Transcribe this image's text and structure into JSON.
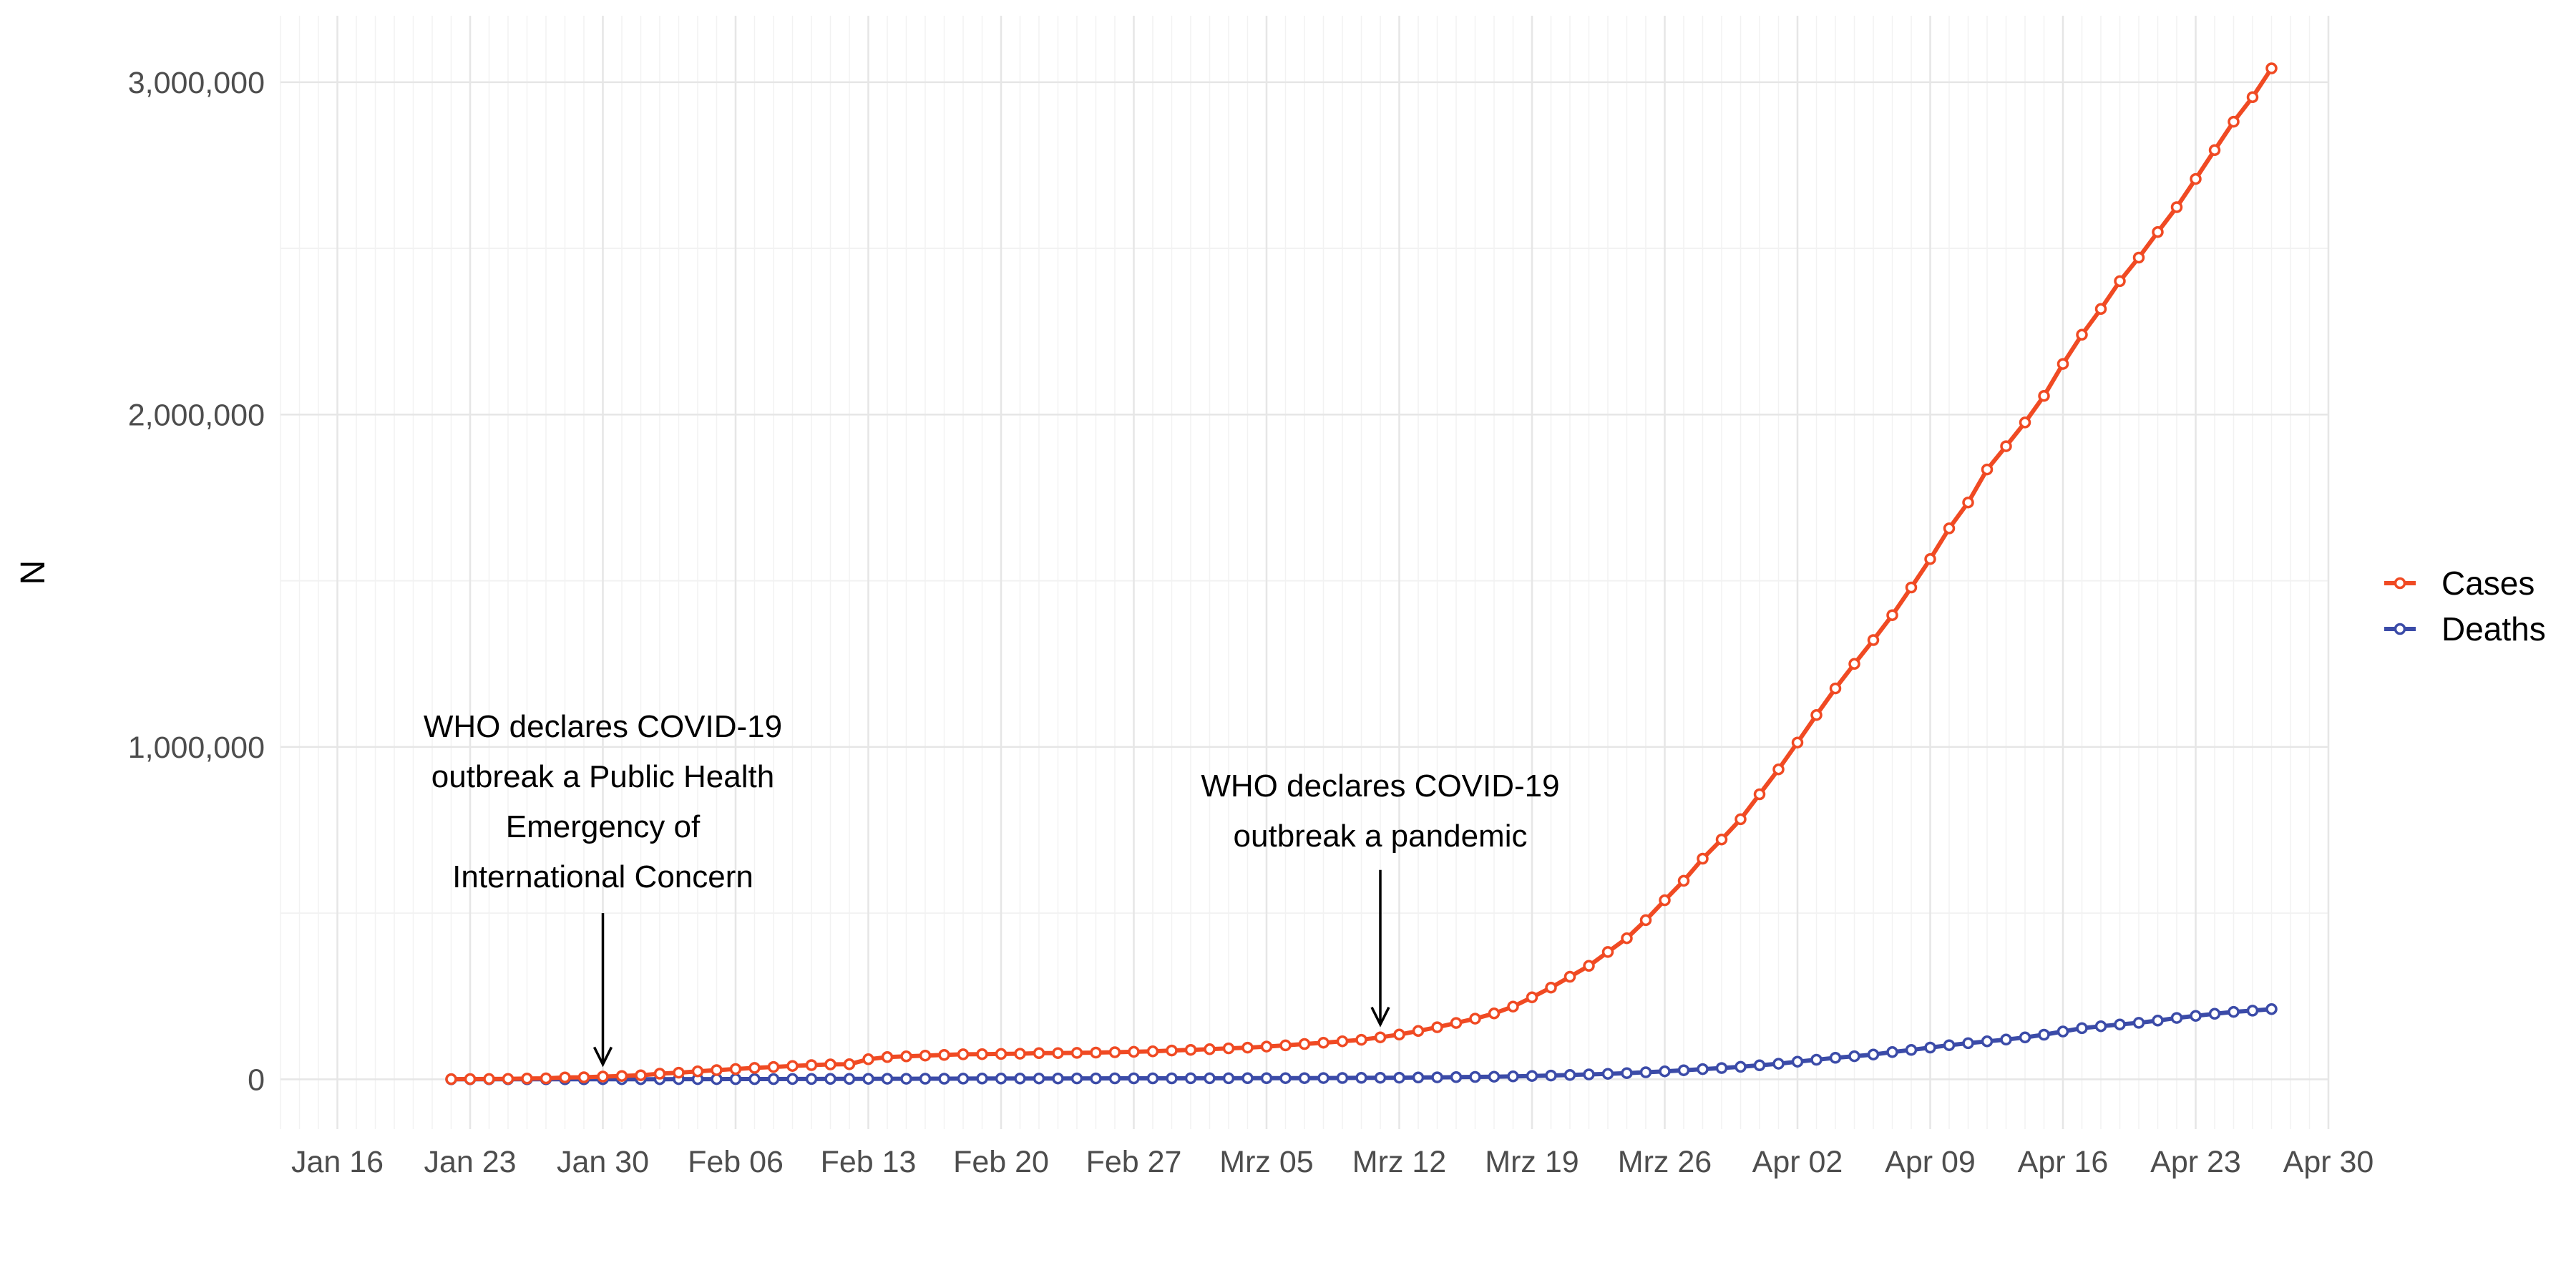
{
  "colors": {
    "cases": "#F04A23",
    "deaths": "#3B4BA8",
    "grid_major": "#E6E6E6",
    "grid_minor": "#F2F2F2"
  },
  "chart_data": {
    "type": "line",
    "xlabel": "",
    "ylabel": "N",
    "xlim": [
      "2020-01-13",
      "2020-04-30"
    ],
    "ylim": [
      -150000,
      3200000
    ],
    "x_ticks": [
      {
        "date": "2020-01-16",
        "label": "Jan 16"
      },
      {
        "date": "2020-01-23",
        "label": "Jan 23"
      },
      {
        "date": "2020-01-30",
        "label": "Jan 30"
      },
      {
        "date": "2020-02-06",
        "label": "Feb 06"
      },
      {
        "date": "2020-02-13",
        "label": "Feb 13"
      },
      {
        "date": "2020-02-20",
        "label": "Feb 20"
      },
      {
        "date": "2020-02-27",
        "label": "Feb 27"
      },
      {
        "date": "2020-03-05",
        "label": "Mrz 05"
      },
      {
        "date": "2020-03-12",
        "label": "Mrz 12"
      },
      {
        "date": "2020-03-19",
        "label": "Mrz 19"
      },
      {
        "date": "2020-03-26",
        "label": "Mrz 26"
      },
      {
        "date": "2020-04-02",
        "label": "Apr 02"
      },
      {
        "date": "2020-04-09",
        "label": "Apr 09"
      },
      {
        "date": "2020-04-16",
        "label": "Apr 16"
      },
      {
        "date": "2020-04-23",
        "label": "Apr 23"
      },
      {
        "date": "2020-04-30",
        "label": "Apr 30"
      }
    ],
    "y_ticks": [
      {
        "value": 0,
        "label": "0"
      },
      {
        "value": 1000000,
        "label": "1,000,000"
      },
      {
        "value": 2000000,
        "label": "2,000,000"
      },
      {
        "value": 3000000,
        "label": "3,000,000"
      }
    ],
    "grid": true,
    "legend_position": "right",
    "x_start": "2020-01-22",
    "x_end": "2020-04-27",
    "series": [
      {
        "name": "Cases",
        "color_key": "cases",
        "values": [
          555,
          654,
          941,
          1434,
          2118,
          2927,
          5578,
          6166,
          8234,
          9927,
          12038,
          16787,
          19881,
          23892,
          27635,
          30794,
          34391,
          37120,
          40150,
          42762,
          44802,
          45221,
          60368,
          66885,
          69030,
          71224,
          73258,
          75136,
          75639,
          76197,
          76819,
          78572,
          78958,
          79561,
          80406,
          81388,
          82746,
          84112,
          86604,
          88585,
          90443,
          93016,
          95314,
          98425,
          102050,
          106099,
          109991,
          114381,
          118948,
          126214,
          134576,
          145483,
          156653,
          169593,
          182490,
          198234,
          218822,
          246474,
          275840,
          308591,
          341353,
          383144,
          424509,
          478826,
          538663,
          597285,
          663787,
          721526,
          782365,
          857487,
          932605,
          1013320,
          1095917,
          1176060,
          1249754,
          1321481,
          1396476,
          1479805,
          1565278,
          1657526,
          1735650,
          1834721,
          1904838,
          1976192,
          2056055,
          2152437,
          2240190,
          2317758,
          2401378,
          2472259,
          2549123,
          2624074,
          2708885,
          2795731,
          2881140,
          2955033,
          3041764
        ]
      },
      {
        "name": "Deaths",
        "color_key": "deaths",
        "values": [
          17,
          18,
          26,
          42,
          56,
          82,
          131,
          133,
          171,
          213,
          259,
          362,
          426,
          492,
          564,
          634,
          719,
          806,
          906,
          1013,
          1113,
          1118,
          1371,
          1523,
          1666,
          1770,
          1868,
          2007,
          2122,
          2247,
          2251,
          2458,
          2469,
          2629,
          2708,
          2770,
          2814,
          2872,
          2941,
          2996,
          3085,
          3160,
          3254,
          3348,
          3460,
          3558,
          3803,
          3996,
          4262,
          4615,
          4720,
          5404,
          5819,
          6440,
          7126,
          7905,
          8733,
          9867,
          11299,
          12973,
          14651,
          16505,
          18625,
          21181,
          23970,
          27198,
          30652,
          33925,
          37582,
          42107,
          46809,
          52983,
          58787,
          64606,
          69374,
          74565,
          81865,
          88338,
          95455,
          102525,
          108502,
          114090,
          119481,
          125984,
          134177,
          143800,
          153821,
          159510,
          165044,
          169985,
          176583,
          184643,
          190858,
          197159,
          202846,
          206544,
          211167
        ]
      }
    ],
    "annotations": [
      {
        "date": "2020-01-30",
        "lines": [
          "WHO declares COVID-19",
          "outbreak a Public Health",
          "Emergency of",
          "International Concern"
        ],
        "arrow_from": 500000,
        "arrow_to": 45000
      },
      {
        "date": "2020-03-11",
        "lines": [
          "WHO declares COVID-19",
          "outbreak a pandemic"
        ],
        "arrow_from": 630000,
        "arrow_to": 165000
      }
    ]
  }
}
